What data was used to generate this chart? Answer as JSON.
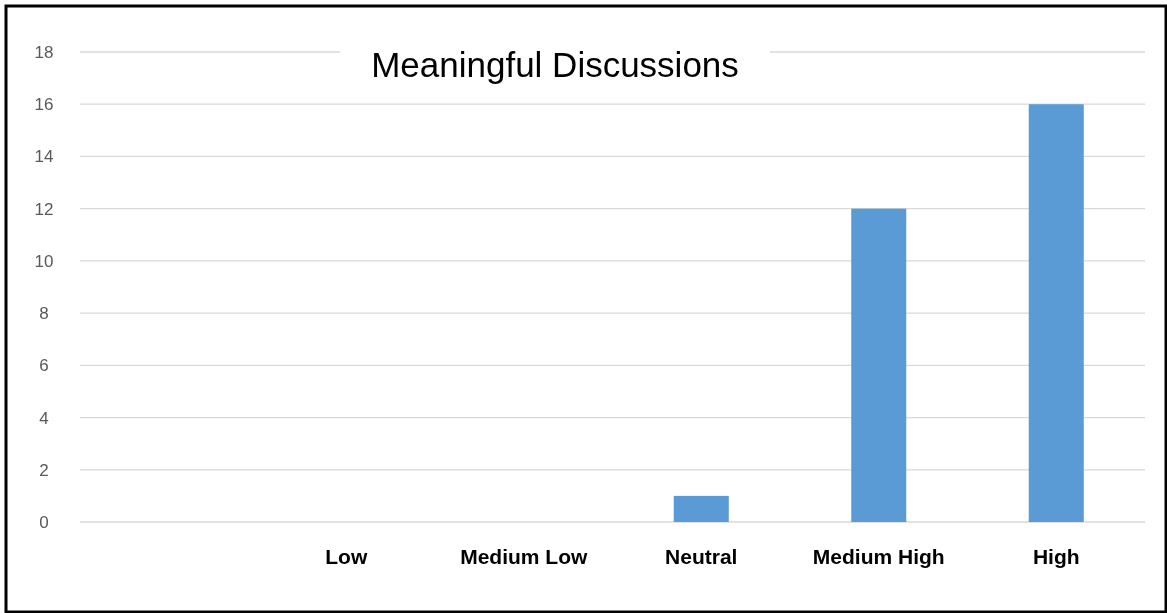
{
  "chart_data": {
    "type": "bar",
    "title": "Meaningful Discussions",
    "categories": [
      null,
      "Low",
      "Medium Low",
      "Neutral",
      "Medium High",
      "High"
    ],
    "values": [
      0,
      0,
      0,
      1,
      12,
      16
    ],
    "color": "#5b9bd5",
    "ylim": [
      0,
      18
    ],
    "yticks": [
      0,
      2,
      4,
      6,
      8,
      10,
      12,
      14,
      16,
      18
    ],
    "grid": "y"
  }
}
